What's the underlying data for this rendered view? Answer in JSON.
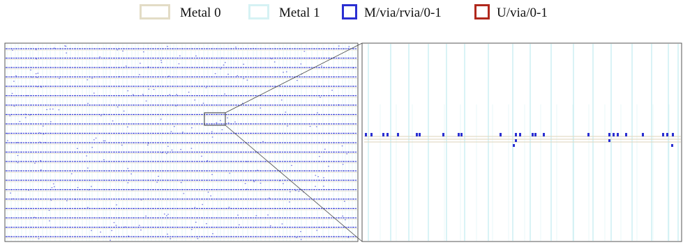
{
  "legend": [
    {
      "label": "Metal 0",
      "color": "#e3dcc6",
      "swatch": "wide"
    },
    {
      "label": "Metal 1",
      "color": "#d6f2f4",
      "swatch": "wide-thin"
    },
    {
      "label": "M/via/rvia/0-1",
      "color": "#2a2fd2",
      "swatch": "small"
    },
    {
      "label": "U/via/0-1",
      "color": "#b0281c",
      "swatch": "small"
    }
  ],
  "colors": {
    "metal0": "#e3dcc6",
    "metal1": "#c9eef2",
    "via": "#2a2fd2",
    "frame": "#555555"
  }
}
